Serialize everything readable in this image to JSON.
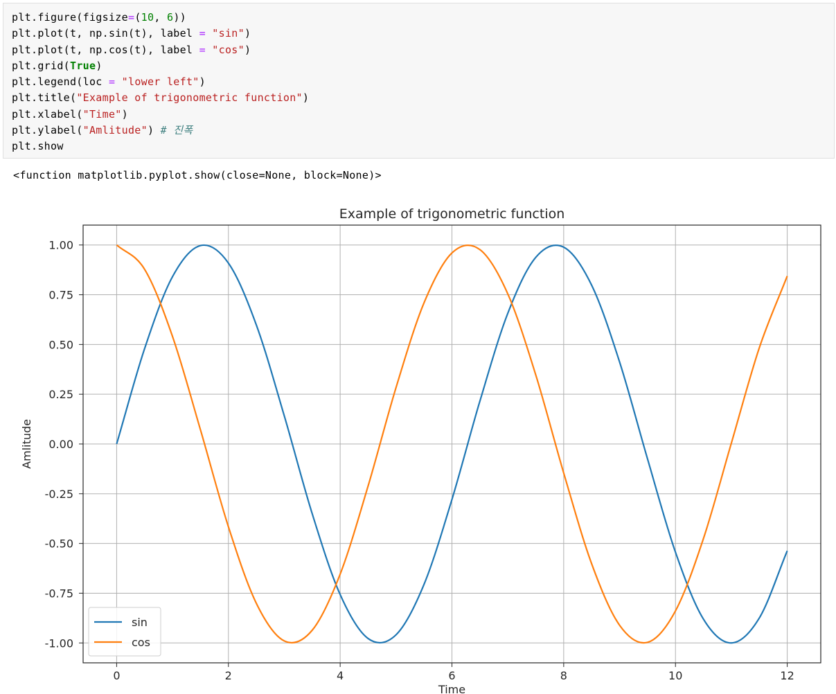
{
  "code": {
    "lines": [
      [
        {
          "t": "plt.figure(figsize"
        },
        {
          "t": "=",
          "c": "op"
        },
        {
          "t": "("
        },
        {
          "t": "10",
          "c": "num"
        },
        {
          "t": ", "
        },
        {
          "t": "6",
          "c": "num"
        },
        {
          "t": "))"
        }
      ],
      [
        {
          "t": "plt.plot(t, np.sin(t), label "
        },
        {
          "t": "=",
          "c": "op"
        },
        {
          "t": " "
        },
        {
          "t": "\"sin\"",
          "c": "str"
        },
        {
          "t": ")"
        }
      ],
      [
        {
          "t": "plt.plot(t, np.cos(t), label "
        },
        {
          "t": "=",
          "c": "op"
        },
        {
          "t": " "
        },
        {
          "t": "\"cos\"",
          "c": "str"
        },
        {
          "t": ")"
        }
      ],
      [
        {
          "t": "plt.grid("
        },
        {
          "t": "True",
          "c": "kw"
        },
        {
          "t": ")"
        }
      ],
      [
        {
          "t": "plt.legend(loc "
        },
        {
          "t": "=",
          "c": "op"
        },
        {
          "t": " "
        },
        {
          "t": "\"lower left\"",
          "c": "str"
        },
        {
          "t": ")"
        }
      ],
      [
        {
          "t": "plt.title("
        },
        {
          "t": "\"Example of trigonometric function\"",
          "c": "str"
        },
        {
          "t": ")"
        }
      ],
      [
        {
          "t": "plt.xlabel("
        },
        {
          "t": "\"Time\"",
          "c": "str"
        },
        {
          "t": ")"
        }
      ],
      [
        {
          "t": "plt.ylabel("
        },
        {
          "t": "\"Amlitude\"",
          "c": "str"
        },
        {
          "t": ") "
        },
        {
          "t": "# 진폭",
          "c": "com"
        }
      ],
      [
        {
          "t": "plt.show"
        }
      ]
    ]
  },
  "output": {
    "text": "<function matplotlib.pyplot.show(close=None, block=None)>"
  },
  "chart_data": {
    "type": "line",
    "title": "Example of trigonometric function",
    "xlabel": "Time",
    "ylabel": "Amlitude",
    "xlim": [
      -0.6,
      12.6
    ],
    "ylim": [
      -1.1,
      1.1
    ],
    "xticks": [
      0,
      2,
      4,
      6,
      8,
      10,
      12
    ],
    "xtick_labels": [
      "0",
      "2",
      "4",
      "6",
      "8",
      "10",
      "12"
    ],
    "yticks": [
      1.0,
      0.75,
      0.5,
      0.25,
      0.0,
      -0.25,
      -0.5,
      -0.75,
      -1.0
    ],
    "ytick_labels": [
      "1.00",
      "0.75",
      "0.50",
      "0.25",
      "0.00",
      "-0.25",
      "-0.50",
      "-0.75",
      "-1.00"
    ],
    "grid": true,
    "legend_position": "lower left",
    "x": [
      0,
      0.5,
      1,
      1.5,
      2,
      2.5,
      3,
      3.5,
      4,
      4.5,
      5,
      5.5,
      6,
      6.5,
      7,
      7.5,
      8,
      8.5,
      9,
      9.5,
      10,
      10.5,
      11,
      11.5,
      12
    ],
    "series": [
      {
        "name": "sin",
        "color": "#1f77b4",
        "values": [
          0.0,
          0.479,
          0.841,
          0.997,
          0.909,
          0.598,
          0.141,
          -0.351,
          -0.757,
          -0.978,
          -0.959,
          -0.706,
          -0.279,
          0.215,
          0.657,
          0.938,
          0.989,
          0.798,
          0.412,
          -0.075,
          -0.544,
          -0.88,
          -1.0,
          -0.875,
          -0.537
        ]
      },
      {
        "name": "cos",
        "color": "#ff7f0e",
        "values": [
          1.0,
          0.878,
          0.54,
          0.071,
          -0.416,
          -0.801,
          -0.99,
          -0.936,
          -0.654,
          -0.211,
          0.284,
          0.709,
          0.96,
          0.977,
          0.754,
          0.347,
          -0.146,
          -0.602,
          -0.911,
          -0.997,
          -0.839,
          -0.476,
          0.004,
          0.483,
          0.844
        ]
      }
    ]
  }
}
